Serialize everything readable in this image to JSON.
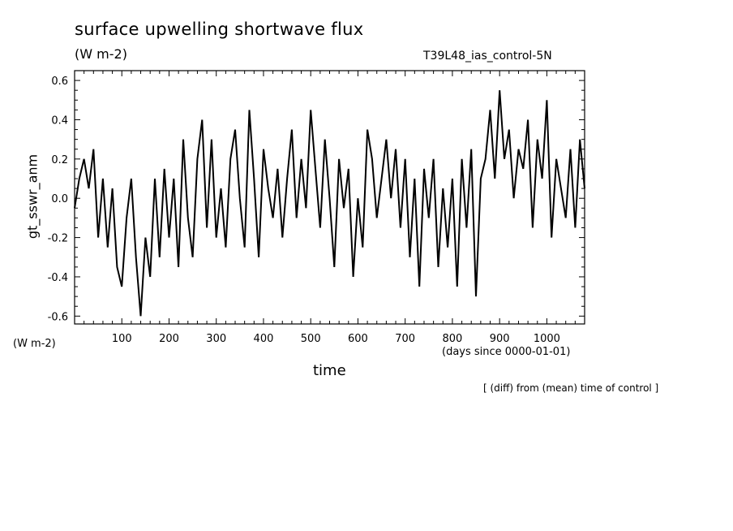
{
  "chart_data": {
    "type": "line",
    "title": "surface upwelling shortwave flux",
    "units": "(W m-2)",
    "run_label": "T39L48_ias_control-5N",
    "ylabel": "gt_sswr_anm",
    "y_units_label": "(W m-2)",
    "xlabel": "time",
    "x_units": "(days since 0000-01-01)",
    "footnote": "[ (diff) from (mean) time of control ]",
    "xlim": [
      0,
      1080
    ],
    "ylim": [
      -0.64,
      0.65
    ],
    "x_ticks": [
      100,
      200,
      300,
      400,
      500,
      600,
      700,
      800,
      900,
      1000
    ],
    "x_tick_labels": [
      "100",
      "200",
      "300",
      "400",
      "500",
      "600",
      "700",
      "800",
      "900",
      "1000"
    ],
    "y_ticks": [
      -0.6,
      -0.4,
      -0.2,
      0.0,
      0.2,
      0.4,
      0.6
    ],
    "y_tick_labels": [
      "-0.6",
      "-0.4",
      "-0.2",
      "0.0",
      "0.2",
      "0.4",
      "0.6"
    ],
    "grid": false,
    "line_color": "#000000",
    "series": [
      {
        "x": [
          0,
          10,
          20,
          30,
          40,
          50,
          60,
          70,
          80,
          90,
          100,
          110,
          120,
          130,
          140,
          150,
          160,
          170,
          180,
          190,
          200,
          210,
          220,
          230,
          240,
          250,
          260,
          270,
          280,
          290,
          300,
          310,
          320,
          330,
          340,
          350,
          360,
          370,
          380,
          390,
          400,
          410,
          420,
          430,
          440,
          450,
          460,
          470,
          480,
          490,
          500,
          510,
          520,
          530,
          540,
          550,
          560,
          570,
          580,
          590,
          600,
          610,
          620,
          630,
          640,
          650,
          660,
          670,
          680,
          690,
          700,
          710,
          720,
          730,
          740,
          750,
          760,
          770,
          780,
          790,
          800,
          810,
          820,
          830,
          840,
          850,
          860,
          870,
          880,
          890,
          900,
          910,
          920,
          930,
          940,
          950,
          960,
          970,
          980,
          990,
          1000,
          1010,
          1020,
          1030,
          1040,
          1050,
          1060,
          1070,
          1080
        ],
        "y": [
          -0.05,
          0.1,
          0.2,
          0.05,
          0.25,
          -0.2,
          0.1,
          -0.25,
          0.05,
          -0.35,
          -0.45,
          -0.1,
          0.1,
          -0.3,
          -0.6,
          -0.2,
          -0.4,
          0.1,
          -0.3,
          0.15,
          -0.2,
          0.1,
          -0.35,
          0.3,
          -0.1,
          -0.3,
          0.2,
          0.4,
          -0.15,
          0.3,
          -0.2,
          0.05,
          -0.25,
          0.2,
          0.35,
          0.0,
          -0.25,
          0.45,
          0.1,
          -0.3,
          0.25,
          0.05,
          -0.1,
          0.15,
          -0.2,
          0.1,
          0.35,
          -0.1,
          0.2,
          -0.05,
          0.45,
          0.15,
          -0.15,
          0.3,
          0.0,
          -0.35,
          0.2,
          -0.05,
          0.15,
          -0.4,
          0.0,
          -0.25,
          0.35,
          0.2,
          -0.1,
          0.1,
          0.3,
          0.0,
          0.25,
          -0.15,
          0.2,
          -0.3,
          0.1,
          -0.45,
          0.15,
          -0.1,
          0.2,
          -0.35,
          0.05,
          -0.25,
          0.1,
          -0.45,
          0.2,
          -0.15,
          0.25,
          -0.5,
          0.1,
          0.2,
          0.45,
          0.1,
          0.55,
          0.2,
          0.35,
          0.0,
          0.25,
          0.15,
          0.4,
          -0.15,
          0.3,
          0.1,
          0.5,
          -0.2,
          0.2,
          0.05,
          -0.1,
          0.25,
          -0.15,
          0.3,
          0.05
        ]
      }
    ]
  }
}
